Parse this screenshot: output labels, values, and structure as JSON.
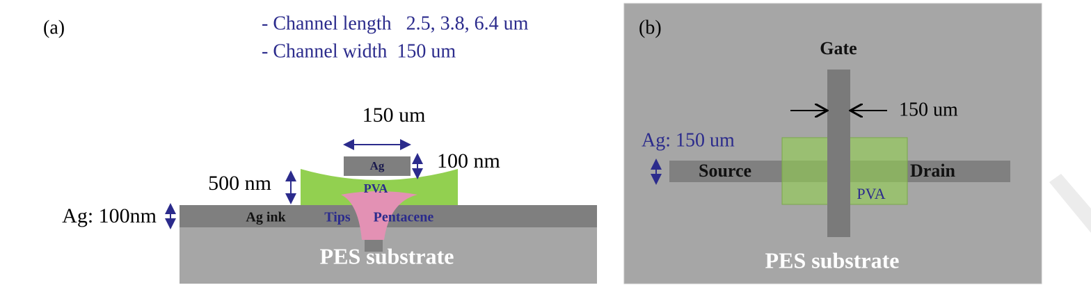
{
  "panel_a": {
    "label": "(a)",
    "notes": [
      "- Channel length   2.5, 3.8, 6.4 um",
      "- Channel width  150 um"
    ],
    "top_ag_width": "150 um",
    "top_ag": "Ag",
    "top_ag_thickness": "100 nm",
    "pva_thickness": "500 nm",
    "pva": "PVA",
    "ag_thickness": "Ag: 100nm",
    "ag_ink": "Ag ink",
    "tips": "Tips",
    "pentacene": "Pentacene",
    "substrate": "PES substrate"
  },
  "panel_b": {
    "label": "(b)",
    "gate": "Gate",
    "gate_width": "150 um",
    "ag_width": "Ag: 150 um",
    "source": "Source",
    "drain": "Drain",
    "pva": "PVA",
    "substrate": "PES substrate"
  }
}
